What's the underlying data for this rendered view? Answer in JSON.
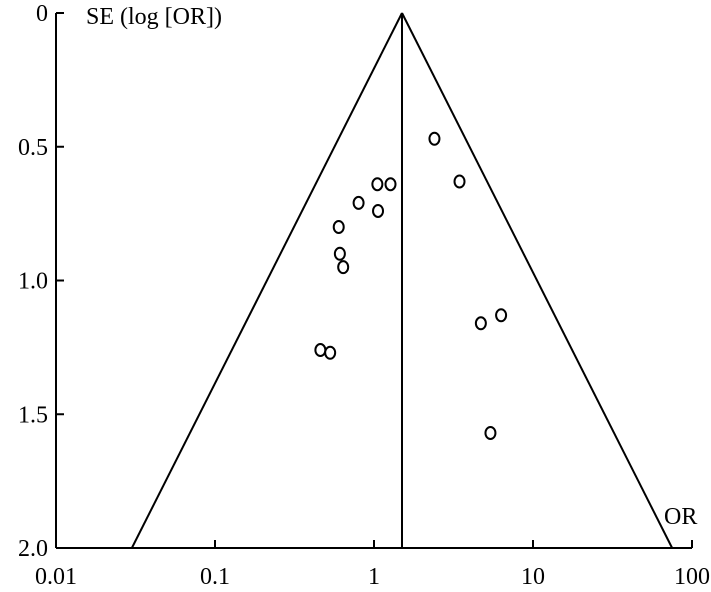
{
  "chart_data": {
    "type": "scatter",
    "chart_kind": "funnel plot",
    "x_scale": "log",
    "y_reversed": true,
    "ylabel": "SE (log [OR])",
    "xlabel": "OR",
    "xlim": [
      0.01,
      100
    ],
    "ylim": [
      0,
      2.0
    ],
    "x_ticks": [
      0.01,
      0.1,
      1,
      10,
      100
    ],
    "x_tick_labels": [
      "0.01",
      "0.1",
      "1",
      "10",
      "100"
    ],
    "y_ticks": [
      0,
      0.5,
      1.0,
      1.5,
      2.0
    ],
    "y_tick_labels": [
      "0",
      "0.5",
      "1.0",
      "1.5",
      "2.0"
    ],
    "pooled_or": 1.5,
    "funnel_bounds_at_se_2": [
      0.03,
      75
    ],
    "grid": false,
    "legend": "none",
    "marker": "open circle",
    "points": [
      {
        "x": 2.4,
        "y": 0.47
      },
      {
        "x": 1.05,
        "y": 0.64
      },
      {
        "x": 1.27,
        "y": 0.64
      },
      {
        "x": 3.45,
        "y": 0.63
      },
      {
        "x": 0.8,
        "y": 0.71
      },
      {
        "x": 1.06,
        "y": 0.74
      },
      {
        "x": 0.6,
        "y": 0.8
      },
      {
        "x": 0.61,
        "y": 0.9
      },
      {
        "x": 0.64,
        "y": 0.95
      },
      {
        "x": 6.3,
        "y": 1.13
      },
      {
        "x": 4.7,
        "y": 1.16
      },
      {
        "x": 0.46,
        "y": 1.26
      },
      {
        "x": 0.53,
        "y": 1.27
      },
      {
        "x": 5.4,
        "y": 1.57
      }
    ]
  }
}
